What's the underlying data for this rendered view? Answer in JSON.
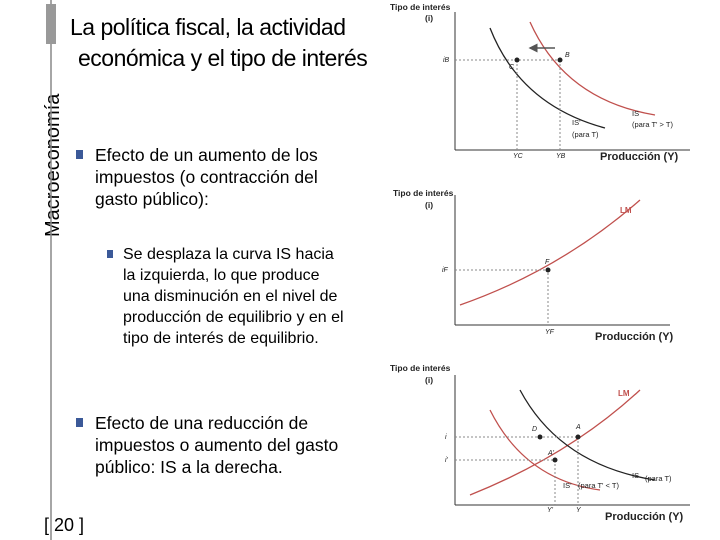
{
  "sidebar": "Macroeconomía",
  "title": [
    "La política fiscal, la actividad",
    "económica y el tipo de interés"
  ],
  "bullets": [
    {
      "text": "Efecto de un aumento de los impuestos (o contracción del gasto público):",
      "sub": [
        "Se desplaza la curva IS hacia la izquierda, lo que produce una disminución en el nivel de producción de equilibrio y en el tipo de interés de equilibrio."
      ]
    },
    {
      "text": "Efecto de una reducción de impuestos o aumento del gasto público: IS a la derecha."
    }
  ],
  "page_number": "[ 20 ]",
  "figures": [
    {
      "y_label": "Tipo de interés",
      "y_symbol": "(i)",
      "x_label": "Producción (Y)",
      "labels": [
        "iB",
        "C",
        "B",
        "IS'",
        "(para T)",
        "IS",
        "(para T' > T)",
        "YC",
        "YB"
      ]
    },
    {
      "y_label": "Tipo de interés",
      "y_symbol": "(i)",
      "x_label": "Producción (Y)",
      "labels": [
        "LM",
        "iF",
        "F",
        "YF"
      ]
    },
    {
      "y_label": "Tipo de interés",
      "y_symbol": "(i)",
      "x_label": "Producción (Y)",
      "labels": [
        "LM",
        "i",
        "i'",
        "D",
        "A",
        "A'",
        "IS",
        "(para T)",
        "IS'",
        "(para T' < T)",
        "Y'",
        "Y"
      ]
    }
  ]
}
